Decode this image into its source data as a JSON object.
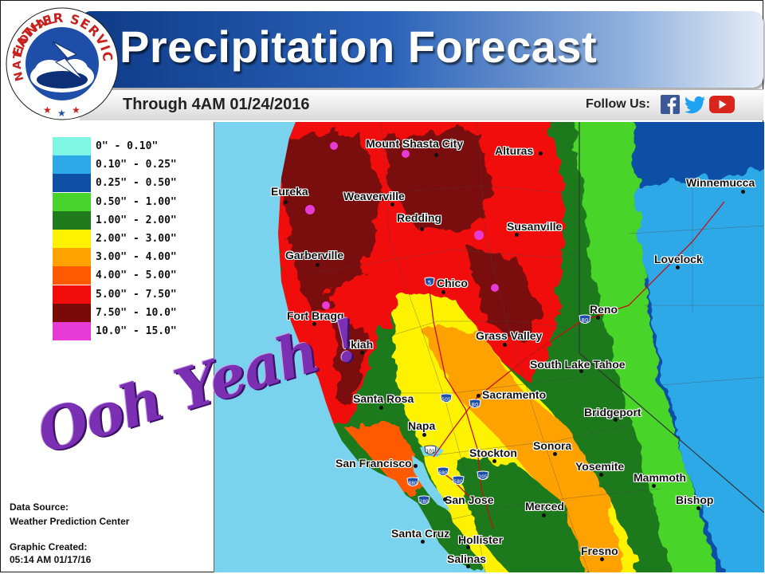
{
  "header": {
    "title": "Precipitation Forecast",
    "through": "Through 4AM 01/24/2016",
    "follow_label": "Follow Us:",
    "social_icons": [
      "facebook-icon",
      "twitter-icon",
      "youtube-icon"
    ]
  },
  "logo": {
    "text": "NATIONAL WEATHER SERVICE"
  },
  "legend": {
    "items": [
      {
        "label": "0\" - 0.10\"",
        "color": "#7ff5e6"
      },
      {
        "label": "0.10\" - 0.25\"",
        "color": "#2ea9e8"
      },
      {
        "label": "0.25\" - 0.50\"",
        "color": "#0f4fa6"
      },
      {
        "label": "0.50\" - 1.00\"",
        "color": "#48d42c"
      },
      {
        "label": "1.00\" - 2.00\"",
        "color": "#1f7a1b"
      },
      {
        "label": "2.00\" - 3.00\"",
        "color": "#fff200"
      },
      {
        "label": "3.00\" - 4.00\"",
        "color": "#ffa200"
      },
      {
        "label": "4.00\" - 5.00\"",
        "color": "#ff5a00"
      },
      {
        "label": "5.00\" - 7.50\"",
        "color": "#f20d0d"
      },
      {
        "label": "7.50\" - 10.0\"",
        "color": "#7a0a0a"
      },
      {
        "label": "10.0\" - 15.0\"",
        "color": "#e83bd6"
      }
    ]
  },
  "map": {
    "cities": [
      "Mount Shasta City",
      "Alturas",
      "Eureka",
      "Weaverville",
      "Redding",
      "Winnemucca",
      "Susanville",
      "Garberville",
      "Lovelock",
      "Chico",
      "Reno",
      "Fort Bragg",
      "Grass Valley",
      "Ukiah",
      "South Lake Tahoe",
      "Santa Rosa",
      "Sacramento",
      "Bridgeport",
      "Napa",
      "San Francisco",
      "Stockton",
      "Sonora",
      "Yosemite",
      "Mammoth",
      "San Jose",
      "Bishop",
      "Merced",
      "Santa Cruz",
      "Hollister",
      "Fresno",
      "Salinas"
    ],
    "highway_shields": [
      "5",
      "80",
      "505",
      "80",
      "680",
      "880",
      "580",
      "205",
      "280",
      "101"
    ]
  },
  "annotation": "Ooh Yeah !",
  "footer": {
    "source_label": "Data Source:",
    "source": "Weather Prediction Center",
    "created_label": "Graphic Created:",
    "created": "05:14 AM 01/17/16"
  }
}
